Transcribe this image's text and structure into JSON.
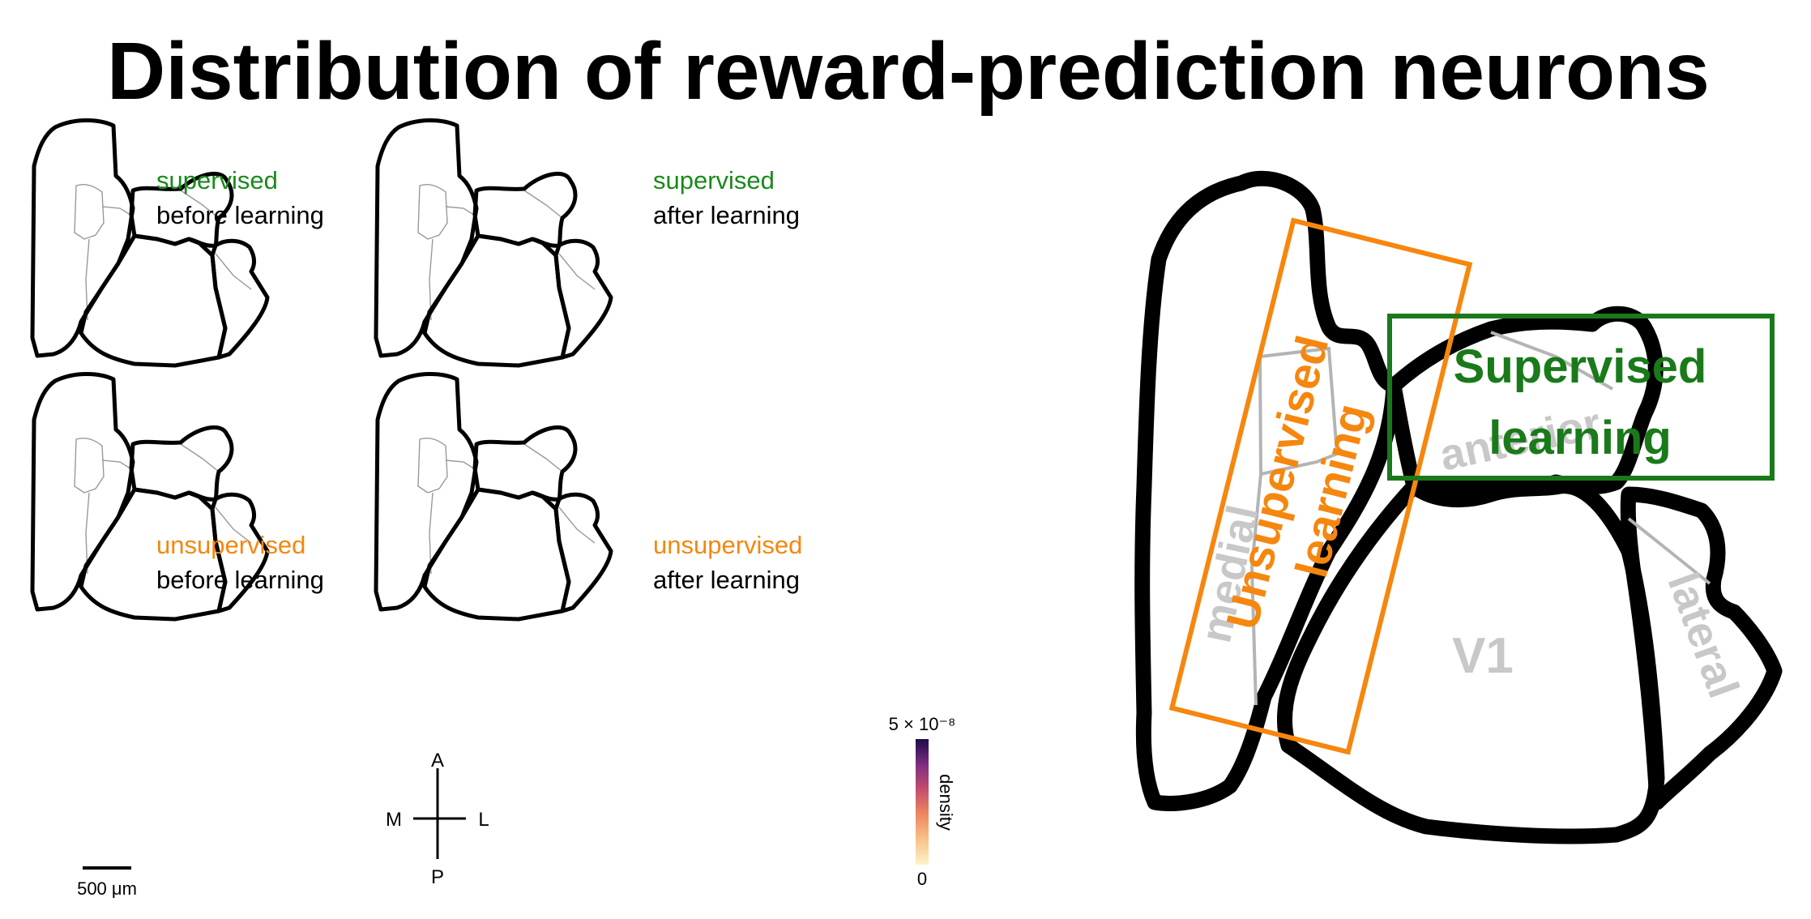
{
  "title": "Distribution of reward-prediction neurons",
  "panels": [
    {
      "condition": "supervised",
      "stage": "before learning",
      "condition_color": "#1a8a1a",
      "intensity": 0.3
    },
    {
      "condition": "supervised",
      "stage": "after learning",
      "condition_color": "#1a8a1a",
      "intensity": 0.8
    },
    {
      "condition": "unsupervised",
      "stage": "before learning",
      "condition_color": "#f5870f",
      "intensity": 0.12
    },
    {
      "condition": "unsupervised",
      "stage": "after learning",
      "condition_color": "#f5870f",
      "intensity": 0.1
    }
  ],
  "compass": {
    "anterior": "A",
    "posterior": "P",
    "medial": "M",
    "lateral": "L"
  },
  "scalebar": {
    "label": "500 μm"
  },
  "colorbar": {
    "max_label": "5 × 10⁻⁸",
    "min_label": "0",
    "title": "density",
    "colors": [
      "#fdf3c8",
      "#f9c289",
      "#ee8860",
      "#c44d6c",
      "#7c2d7f",
      "#1f0c48"
    ]
  },
  "schematic": {
    "unsupervised_label": [
      "Unsupervised",
      "learning"
    ],
    "supervised_label": [
      "Supervised",
      "learning"
    ],
    "region_v1": "V1",
    "region_lateral": "lateral",
    "region_medial": "medial",
    "region_anterior": "anterior",
    "unsupervised_color": "#f5870f",
    "supervised_color": "#1a7a1a",
    "region_label_color": "#c8c8c8"
  }
}
